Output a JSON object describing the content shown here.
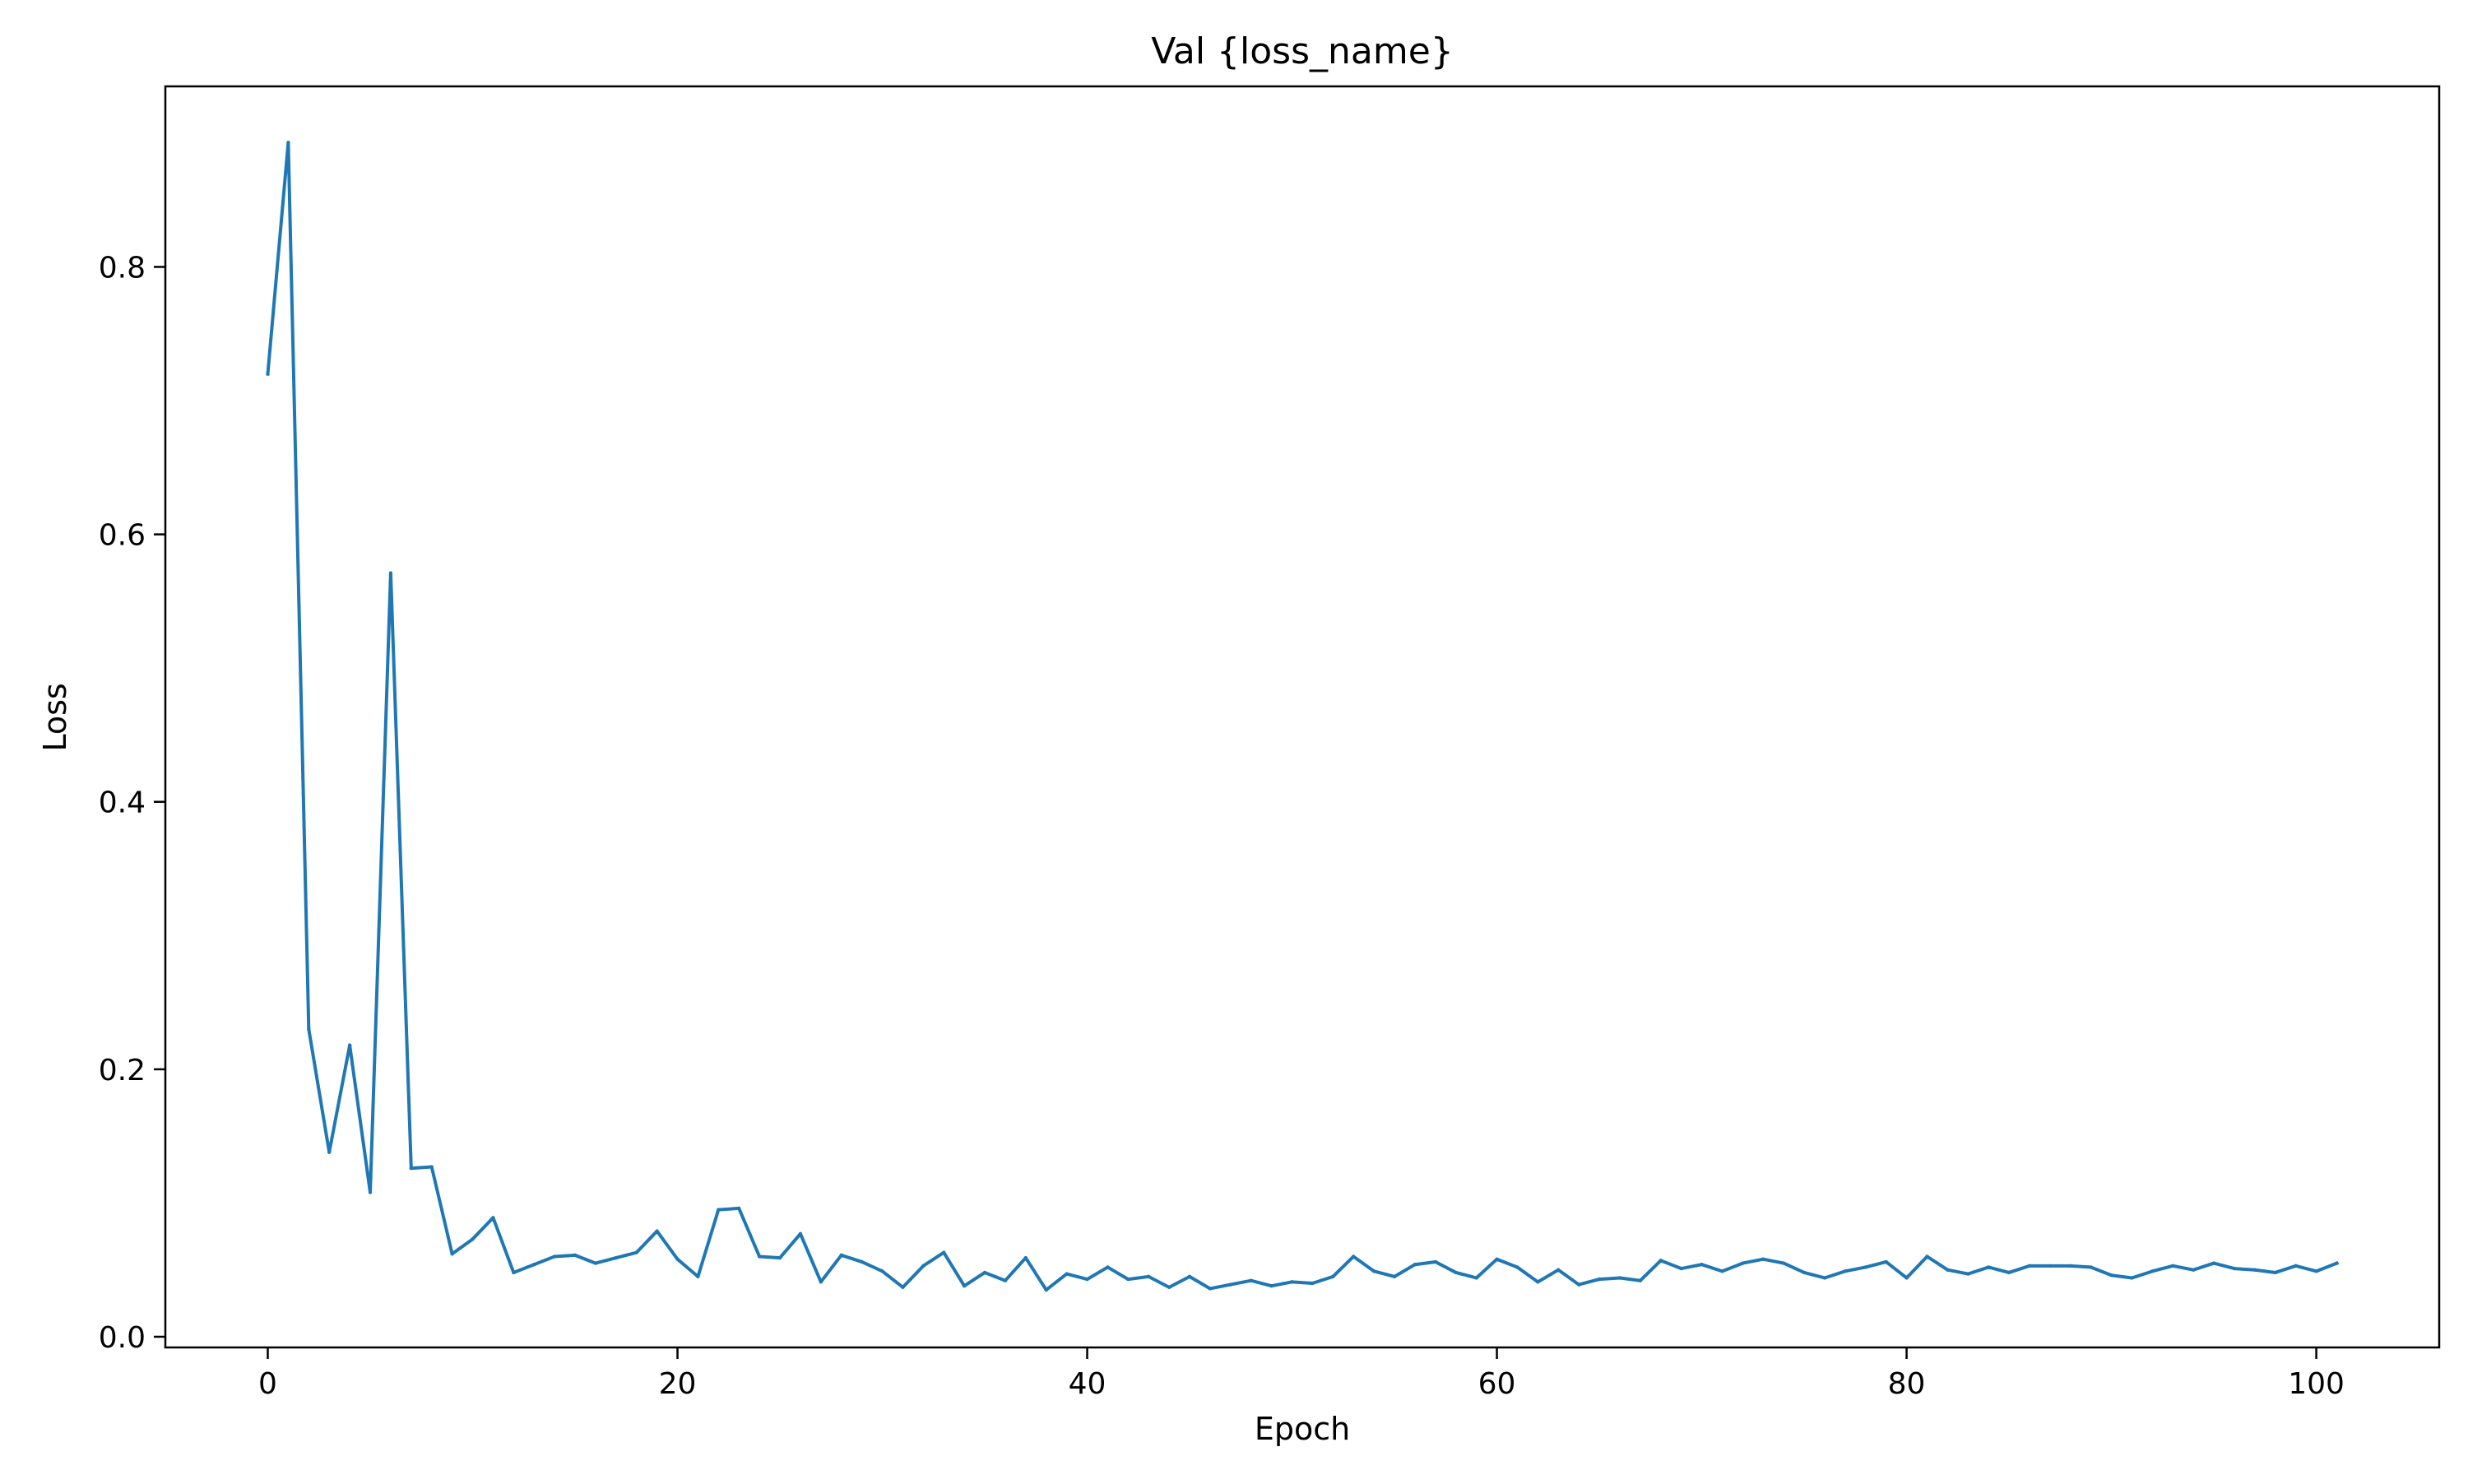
{
  "chart_data": {
    "type": "line",
    "title": "Val {loss_name}",
    "xlabel": "Epoch",
    "ylabel": "Loss",
    "xlim": [
      -5,
      106
    ],
    "ylim": [
      -0.008,
      0.935
    ],
    "xticks": [
      0,
      20,
      40,
      60,
      80,
      100
    ],
    "yticks": [
      0.0,
      0.2,
      0.4,
      0.6,
      0.8
    ],
    "grid": false,
    "series": [
      {
        "color": "#1f77b4",
        "x": [
          0,
          1,
          2,
          3,
          4,
          5,
          6,
          7,
          8,
          9,
          10,
          11,
          12,
          13,
          14,
          15,
          16,
          17,
          18,
          19,
          20,
          21,
          22,
          23,
          24,
          25,
          26,
          27,
          28,
          29,
          30,
          31,
          32,
          33,
          34,
          35,
          36,
          37,
          38,
          39,
          40,
          41,
          42,
          43,
          44,
          45,
          46,
          47,
          48,
          49,
          50,
          51,
          52,
          53,
          54,
          55,
          56,
          57,
          58,
          59,
          60,
          61,
          62,
          63,
          64,
          65,
          66,
          67,
          68,
          69,
          70,
          71,
          72,
          73,
          74,
          75,
          76,
          77,
          78,
          79,
          80,
          81,
          82,
          83,
          84,
          85,
          86,
          87,
          88,
          89,
          90,
          91,
          92,
          93,
          94,
          95,
          96,
          97,
          98,
          99,
          100,
          101
        ],
        "values": [
          0.72,
          0.893,
          0.23,
          0.138,
          0.218,
          0.108,
          0.571,
          0.126,
          0.127,
          0.062,
          0.073,
          0.089,
          0.048,
          0.054,
          0.06,
          0.061,
          0.055,
          0.059,
          0.063,
          0.079,
          0.058,
          0.045,
          0.095,
          0.096,
          0.06,
          0.059,
          0.077,
          0.041,
          0.061,
          0.056,
          0.049,
          0.037,
          0.053,
          0.063,
          0.038,
          0.048,
          0.042,
          0.059,
          0.035,
          0.047,
          0.043,
          0.052,
          0.043,
          0.045,
          0.037,
          0.045,
          0.036,
          0.039,
          0.042,
          0.038,
          0.041,
          0.04,
          0.045,
          0.06,
          0.049,
          0.045,
          0.054,
          0.056,
          0.048,
          0.044,
          0.058,
          0.052,
          0.041,
          0.05,
          0.039,
          0.043,
          0.044,
          0.042,
          0.057,
          0.051,
          0.054,
          0.049,
          0.055,
          0.058,
          0.055,
          0.048,
          0.044,
          0.049,
          0.052,
          0.056,
          0.044,
          0.06,
          0.05,
          0.047,
          0.052,
          0.048,
          0.053,
          0.053,
          0.053,
          0.052,
          0.046,
          0.044,
          0.049,
          0.053,
          0.05,
          0.055,
          0.051,
          0.05,
          0.048,
          0.053,
          0.049,
          0.055
        ]
      }
    ]
  }
}
